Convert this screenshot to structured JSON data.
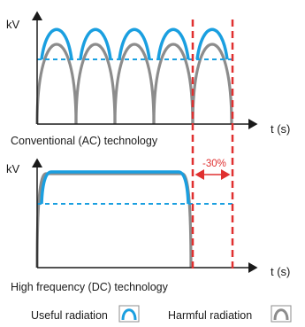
{
  "top_chart": {
    "y_axis_label": "kV",
    "x_axis_label": "t (s)",
    "caption": "Conventional (AC) technology"
  },
  "bottom_chart": {
    "y_axis_label": "kV",
    "x_axis_label": "t (s)",
    "caption": "High frequency (DC) technology"
  },
  "reduction_label": "-30%",
  "legend": {
    "useful_label": "Useful radiation",
    "harmful_label": "Harmful radiation"
  },
  "colors": {
    "useful": "#1a9fe0",
    "harmful": "#8c8c8c",
    "axis": "#1a1a1a",
    "marker": "#e03030"
  }
}
